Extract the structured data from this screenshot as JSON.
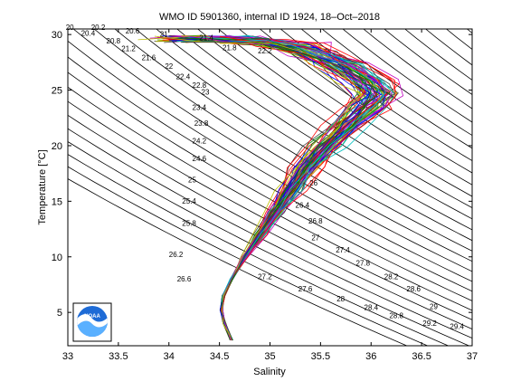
{
  "chart_data": {
    "type": "line",
    "title": "WMO ID 5901360, internal ID 1924, 18–Oct–2018",
    "xlabel": "Salinity",
    "ylabel": "Temperature [°C]",
    "xlim": [
      33,
      37
    ],
    "ylim": [
      2,
      30.5
    ],
    "xticks": [
      "33",
      "33.5",
      "34",
      "34.5",
      "35",
      "35.5",
      "36",
      "36.5",
      "37"
    ],
    "yticks": [
      "5",
      "10",
      "15",
      "20",
      "25",
      "30"
    ],
    "grid": false,
    "density_labels": [
      {
        "text": "20",
        "s": 33.02,
        "t": 30.4
      },
      {
        "text": "20.2",
        "s": 33.3,
        "t": 30.4
      },
      {
        "text": "20.6",
        "s": 33.64,
        "t": 30.1
      },
      {
        "text": "20.4",
        "s": 33.2,
        "t": 29.9
      },
      {
        "text": "21",
        "s": 33.95,
        "t": 29.8
      },
      {
        "text": "20.8",
        "s": 33.45,
        "t": 29.2
      },
      {
        "text": "21.4",
        "s": 34.37,
        "t": 29.5
      },
      {
        "text": "21.2",
        "s": 33.6,
        "t": 28.5
      },
      {
        "text": "21.8",
        "s": 34.6,
        "t": 28.6
      },
      {
        "text": "22.2",
        "s": 34.95,
        "t": 28.3
      },
      {
        "text": "21.6",
        "s": 33.8,
        "t": 27.7
      },
      {
        "text": "22",
        "s": 34.0,
        "t": 26.9
      },
      {
        "text": "22.4",
        "s": 34.14,
        "t": 26.0
      },
      {
        "text": "22.8",
        "s": 34.3,
        "t": 25.2
      },
      {
        "text": "23",
        "s": 34.36,
        "t": 24.6
      },
      {
        "text": "23.4",
        "s": 34.3,
        "t": 23.2
      },
      {
        "text": "23.8",
        "s": 34.32,
        "t": 21.8
      },
      {
        "text": "24.2",
        "s": 34.3,
        "t": 20.2
      },
      {
        "text": "24.6",
        "s": 34.3,
        "t": 18.6
      },
      {
        "text": "25",
        "s": 34.23,
        "t": 16.7
      },
      {
        "text": "25.4",
        "s": 34.2,
        "t": 14.8
      },
      {
        "text": "25.8",
        "s": 34.2,
        "t": 12.8
      },
      {
        "text": "26",
        "s": 35.43,
        "t": 16.4
      },
      {
        "text": "26.4",
        "s": 35.32,
        "t": 14.4
      },
      {
        "text": "26.8",
        "s": 35.45,
        "t": 13.0
      },
      {
        "text": "27",
        "s": 35.45,
        "t": 11.5
      },
      {
        "text": "27.4",
        "s": 35.72,
        "t": 10.4
      },
      {
        "text": "27.8",
        "s": 35.92,
        "t": 9.2
      },
      {
        "text": "28.2",
        "s": 36.2,
        "t": 8.0
      },
      {
        "text": "28.6",
        "s": 36.42,
        "t": 6.9
      },
      {
        "text": "29",
        "s": 36.62,
        "t": 5.3
      },
      {
        "text": "29.2",
        "s": 36.58,
        "t": 3.8
      },
      {
        "text": "29.4",
        "s": 36.85,
        "t": 3.5
      },
      {
        "text": "26.2",
        "s": 34.07,
        "t": 10.0
      },
      {
        "text": "26.6",
        "s": 34.15,
        "t": 7.8
      },
      {
        "text": "27.2",
        "s": 34.95,
        "t": 8.0
      },
      {
        "text": "27.6",
        "s": 35.35,
        "t": 6.9
      },
      {
        "text": "28",
        "s": 35.7,
        "t": 6.0
      },
      {
        "text": "28.4",
        "s": 36.0,
        "t": 5.2
      },
      {
        "text": "28.8",
        "s": 36.25,
        "t": 4.5
      }
    ]
  },
  "logo": {
    "text": "NOAA"
  },
  "colors": {
    "isopycnal": "#000000",
    "profiles": [
      "#0000ff",
      "#008000",
      "#ff0000",
      "#00bfbf",
      "#bf00bf",
      "#bfbf00",
      "#404040"
    ],
    "logo_blue": "#1e6bd6",
    "logo_light": "#5ab0ff"
  }
}
